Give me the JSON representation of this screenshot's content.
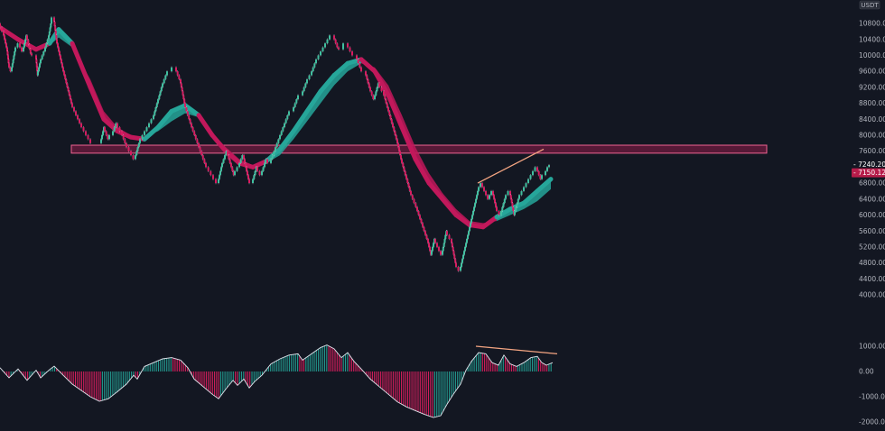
{
  "chart_data": {
    "type": "line",
    "currency": "USDT",
    "price_axis": {
      "ticks": [
        "10800.00",
        "10400.00",
        "10000.00",
        "9600.00",
        "9200.00",
        "8800.00",
        "8400.00",
        "8000.00",
        "7600.00",
        "7200.00",
        "6800.00",
        "6400.00",
        "6000.00",
        "5600.00",
        "5200.00",
        "4800.00",
        "4400.00",
        "4000.00"
      ],
      "ylim": [
        3800,
        11200
      ],
      "last_price": "7240.20",
      "previous_close": "7150.12"
    },
    "oscillator_axis": {
      "ticks": [
        "1000.00",
        "0.00",
        "-1000.00",
        "-2000.00"
      ],
      "ylim": [
        -2000,
        1500
      ]
    },
    "renko_path": [
      [
        0,
        10800
      ],
      [
        4,
        10600
      ],
      [
        8,
        10200
      ],
      [
        10,
        9800
      ],
      [
        13,
        9600
      ],
      [
        17,
        10100
      ],
      [
        22,
        10300
      ],
      [
        26,
        10100
      ],
      [
        30,
        10500
      ],
      [
        35,
        10050
      ],
      [
        40,
        10000
      ],
      [
        42,
        9500
      ],
      [
        45,
        9800
      ],
      [
        50,
        10100
      ],
      [
        54,
        10400
      ],
      [
        57,
        10800
      ],
      [
        60,
        10950
      ],
      [
        63,
        10400
      ],
      [
        70,
        9700
      ],
      [
        80,
        8800
      ],
      [
        90,
        8300
      ],
      [
        100,
        7900
      ],
      [
        112,
        7800
      ],
      [
        116,
        8200
      ],
      [
        121,
        7900
      ],
      [
        125,
        8000
      ],
      [
        130,
        8300
      ],
      [
        135,
        8100
      ],
      [
        140,
        7800
      ],
      [
        145,
        7600
      ],
      [
        150,
        7400
      ],
      [
        155,
        7800
      ],
      [
        160,
        8000
      ],
      [
        165,
        8200
      ],
      [
        170,
        8400
      ],
      [
        175,
        8800
      ],
      [
        180,
        9200
      ],
      [
        185,
        9500
      ],
      [
        190,
        9600
      ],
      [
        195,
        9700
      ],
      [
        200,
        9400
      ],
      [
        205,
        8800
      ],
      [
        212,
        8300
      ],
      [
        220,
        7800
      ],
      [
        228,
        7300
      ],
      [
        236,
        7000
      ],
      [
        242,
        6800
      ],
      [
        246,
        7200
      ],
      [
        252,
        7600
      ],
      [
        256,
        7300
      ],
      [
        260,
        7000
      ],
      [
        265,
        7200
      ],
      [
        270,
        7500
      ],
      [
        276,
        6900
      ],
      [
        280,
        6800
      ],
      [
        285,
        7200
      ],
      [
        290,
        7000
      ],
      [
        296,
        7400
      ],
      [
        300,
        7300
      ],
      [
        305,
        7600
      ],
      [
        310,
        7900
      ],
      [
        315,
        8200
      ],
      [
        320,
        8500
      ],
      [
        325,
        8600
      ],
      [
        330,
        8900
      ],
      [
        335,
        9000
      ],
      [
        340,
        9300
      ],
      [
        345,
        9500
      ],
      [
        350,
        9800
      ],
      [
        355,
        10000
      ],
      [
        360,
        10200
      ],
      [
        365,
        10400
      ],
      [
        370,
        10500
      ],
      [
        375,
        10200
      ],
      [
        380,
        10150
      ],
      [
        385,
        10300
      ],
      [
        390,
        10100
      ],
      [
        395,
        10000
      ],
      [
        400,
        9700
      ],
      [
        405,
        9600
      ],
      [
        410,
        9200
      ],
      [
        415,
        8900
      ],
      [
        420,
        9300
      ],
      [
        425,
        9100
      ],
      [
        430,
        8700
      ],
      [
        435,
        8300
      ],
      [
        440,
        7900
      ],
      [
        445,
        7400
      ],
      [
        450,
        7000
      ],
      [
        455,
        6600
      ],
      [
        462,
        6200
      ],
      [
        468,
        5800
      ],
      [
        474,
        5400
      ],
      [
        478,
        5000
      ],
      [
        482,
        5400
      ],
      [
        486,
        5200
      ],
      [
        490,
        5000
      ],
      [
        495,
        5600
      ],
      [
        500,
        5400
      ],
      [
        505,
        4800
      ],
      [
        510,
        4600
      ],
      [
        514,
        5000
      ],
      [
        518,
        5400
      ],
      [
        522,
        5800
      ],
      [
        526,
        6200
      ],
      [
        530,
        6600
      ],
      [
        534,
        6800
      ],
      [
        538,
        6600
      ],
      [
        542,
        6400
      ],
      [
        546,
        6600
      ],
      [
        550,
        6200
      ],
      [
        555,
        6000
      ],
      [
        560,
        6400
      ],
      [
        565,
        6600
      ],
      [
        570,
        6000
      ],
      [
        575,
        6400
      ],
      [
        580,
        6600
      ],
      [
        585,
        6800
      ],
      [
        590,
        7000
      ],
      [
        595,
        7200
      ],
      [
        600,
        6900
      ],
      [
        604,
        7000
      ],
      [
        608,
        7200
      ],
      [
        612,
        7250
      ]
    ],
    "price_ma": [
      [
        0,
        10700
      ],
      [
        20,
        10400
      ],
      [
        40,
        10150
      ],
      [
        55,
        10300
      ],
      [
        65,
        10650
      ],
      [
        80,
        10300
      ],
      [
        100,
        9200
      ],
      [
        115,
        8400
      ],
      [
        130,
        8100
      ],
      [
        145,
        7950
      ],
      [
        160,
        7900
      ],
      [
        175,
        8200
      ],
      [
        190,
        8600
      ],
      [
        205,
        8750
      ],
      [
        220,
        8500
      ],
      [
        235,
        8000
      ],
      [
        250,
        7600
      ],
      [
        265,
        7300
      ],
      [
        280,
        7200
      ],
      [
        295,
        7350
      ],
      [
        310,
        7650
      ],
      [
        325,
        8100
      ],
      [
        340,
        8600
      ],
      [
        355,
        9100
      ],
      [
        370,
        9500
      ],
      [
        385,
        9800
      ],
      [
        400,
        9900
      ],
      [
        415,
        9600
      ],
      [
        430,
        9000
      ],
      [
        445,
        8200
      ],
      [
        460,
        7400
      ],
      [
        475,
        6800
      ],
      [
        490,
        6400
      ],
      [
        505,
        6000
      ],
      [
        520,
        5750
      ],
      [
        535,
        5700
      ],
      [
        550,
        5950
      ],
      [
        565,
        6150
      ],
      [
        580,
        6300
      ],
      [
        595,
        6600
      ],
      [
        610,
        6900
      ]
    ],
    "price_ma_signal": [
      [
        0,
        10700
      ],
      [
        20,
        10450
      ],
      [
        40,
        10200
      ],
      [
        55,
        10250
      ],
      [
        65,
        10450
      ],
      [
        80,
        10200
      ],
      [
        100,
        9400
      ],
      [
        115,
        8600
      ],
      [
        130,
        8200
      ],
      [
        145,
        8000
      ],
      [
        160,
        7950
      ],
      [
        175,
        8100
      ],
      [
        190,
        8350
      ],
      [
        205,
        8550
      ],
      [
        220,
        8450
      ],
      [
        235,
        8050
      ],
      [
        250,
        7700
      ],
      [
        265,
        7400
      ],
      [
        280,
        7250
      ],
      [
        295,
        7300
      ],
      [
        310,
        7500
      ],
      [
        325,
        7900
      ],
      [
        340,
        8350
      ],
      [
        355,
        8800
      ],
      [
        370,
        9250
      ],
      [
        385,
        9600
      ],
      [
        400,
        9800
      ],
      [
        415,
        9700
      ],
      [
        430,
        9250
      ],
      [
        445,
        8500
      ],
      [
        460,
        7700
      ],
      [
        475,
        7050
      ],
      [
        490,
        6550
      ],
      [
        505,
        6150
      ],
      [
        520,
        5850
      ],
      [
        535,
        5800
      ],
      [
        550,
        5850
      ],
      [
        565,
        6000
      ],
      [
        580,
        6150
      ],
      [
        595,
        6350
      ],
      [
        610,
        6650
      ]
    ],
    "resistance_zone": {
      "from_x": 79,
      "to_x": 849,
      "low": 7550,
      "high": 7750
    },
    "price_trendline": [
      [
        529,
        6800
      ],
      [
        602,
        7650
      ]
    ],
    "oscillator": [
      [
        0,
        150
      ],
      [
        10,
        -250
      ],
      [
        20,
        100
      ],
      [
        30,
        -350
      ],
      [
        40,
        50
      ],
      [
        45,
        -250
      ],
      [
        55,
        80
      ],
      [
        60,
        210
      ],
      [
        70,
        -150
      ],
      [
        80,
        -500
      ],
      [
        90,
        -750
      ],
      [
        100,
        -1000
      ],
      [
        110,
        -1180
      ],
      [
        120,
        -1080
      ],
      [
        130,
        -800
      ],
      [
        140,
        -500
      ],
      [
        148,
        -150
      ],
      [
        152,
        -300
      ],
      [
        160,
        200
      ],
      [
        170,
        350
      ],
      [
        180,
        500
      ],
      [
        190,
        550
      ],
      [
        200,
        450
      ],
      [
        208,
        150
      ],
      [
        215,
        -300
      ],
      [
        225,
        -600
      ],
      [
        235,
        -900
      ],
      [
        242,
        -1080
      ],
      [
        250,
        -700
      ],
      [
        258,
        -350
      ],
      [
        263,
        -550
      ],
      [
        270,
        -300
      ],
      [
        276,
        -650
      ],
      [
        282,
        -400
      ],
      [
        290,
        -150
      ],
      [
        300,
        300
      ],
      [
        310,
        500
      ],
      [
        320,
        650
      ],
      [
        330,
        700
      ],
      [
        335,
        450
      ],
      [
        345,
        700
      ],
      [
        355,
        950
      ],
      [
        362,
        1050
      ],
      [
        370,
        900
      ],
      [
        378,
        550
      ],
      [
        385,
        750
      ],
      [
        392,
        400
      ],
      [
        400,
        100
      ],
      [
        410,
        -300
      ],
      [
        420,
        -600
      ],
      [
        430,
        -900
      ],
      [
        440,
        -1200
      ],
      [
        450,
        -1400
      ],
      [
        460,
        -1550
      ],
      [
        470,
        -1700
      ],
      [
        480,
        -1820
      ],
      [
        488,
        -1750
      ],
      [
        495,
        -1300
      ],
      [
        502,
        -900
      ],
      [
        510,
        -500
      ],
      [
        516,
        50
      ],
      [
        522,
        400
      ],
      [
        530,
        750
      ],
      [
        538,
        700
      ],
      [
        545,
        350
      ],
      [
        552,
        250
      ],
      [
        558,
        650
      ],
      [
        565,
        300
      ],
      [
        572,
        200
      ],
      [
        580,
        350
      ],
      [
        588,
        550
      ],
      [
        595,
        600
      ],
      [
        600,
        350
      ],
      [
        605,
        250
      ],
      [
        612,
        350
      ]
    ],
    "oscillator_trendline": [
      [
        527,
        1000
      ],
      [
        617,
        700
      ]
    ]
  }
}
